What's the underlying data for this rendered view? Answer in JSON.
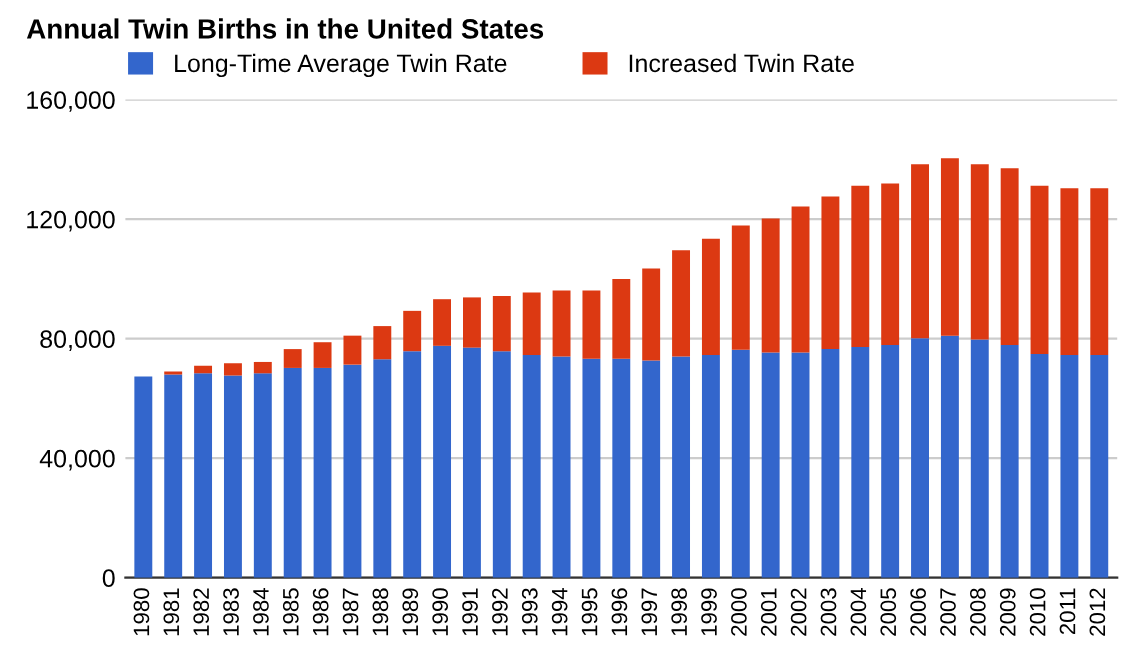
{
  "chart_data": {
    "type": "bar",
    "title": "Annual Twin Births in the United States",
    "stacked": true,
    "categories": [
      "1980",
      "1981",
      "1982",
      "1983",
      "1984",
      "1985",
      "1986",
      "1987",
      "1988",
      "1989",
      "1990",
      "1991",
      "1992",
      "1993",
      "1994",
      "1995",
      "1996",
      "1997",
      "1998",
      "1999",
      "2000",
      "2001",
      "2002",
      "2003",
      "2004",
      "2005",
      "2006",
      "2007",
      "2008",
      "2009",
      "2010",
      "2011",
      "2012"
    ],
    "series": [
      {
        "name": "Long-Time Average Twin Rate",
        "color": "#3366cc",
        "values": [
          67300,
          68000,
          68400,
          67700,
          68400,
          70200,
          70200,
          71300,
          73100,
          75800,
          77600,
          77000,
          75800,
          74500,
          74000,
          73300,
          73300,
          72700,
          74000,
          74500,
          76300,
          75400,
          75400,
          76500,
          77200,
          77900,
          80100,
          81000,
          79700,
          77900,
          74900,
          74500,
          74500
        ]
      },
      {
        "name": "Increased Twin Rate",
        "color": "#dc3912",
        "values": [
          0,
          1000,
          2500,
          4100,
          3800,
          6300,
          8600,
          9700,
          11100,
          13500,
          15600,
          16800,
          18500,
          20900,
          22100,
          22800,
          26700,
          30800,
          35600,
          38900,
          41600,
          44800,
          48800,
          51100,
          54000,
          54000,
          58300,
          59400,
          58700,
          59100,
          56300,
          55800,
          55800
        ]
      }
    ],
    "ylim": [
      0,
      160000
    ],
    "yticks": [
      {
        "value": 0,
        "label": "0"
      },
      {
        "value": 40000,
        "label": "40,000"
      },
      {
        "value": 80000,
        "label": "80,000"
      },
      {
        "value": 120000,
        "label": "120,000"
      },
      {
        "value": 160000,
        "label": "160,000"
      }
    ],
    "grid": "y",
    "legend": "top left"
  }
}
